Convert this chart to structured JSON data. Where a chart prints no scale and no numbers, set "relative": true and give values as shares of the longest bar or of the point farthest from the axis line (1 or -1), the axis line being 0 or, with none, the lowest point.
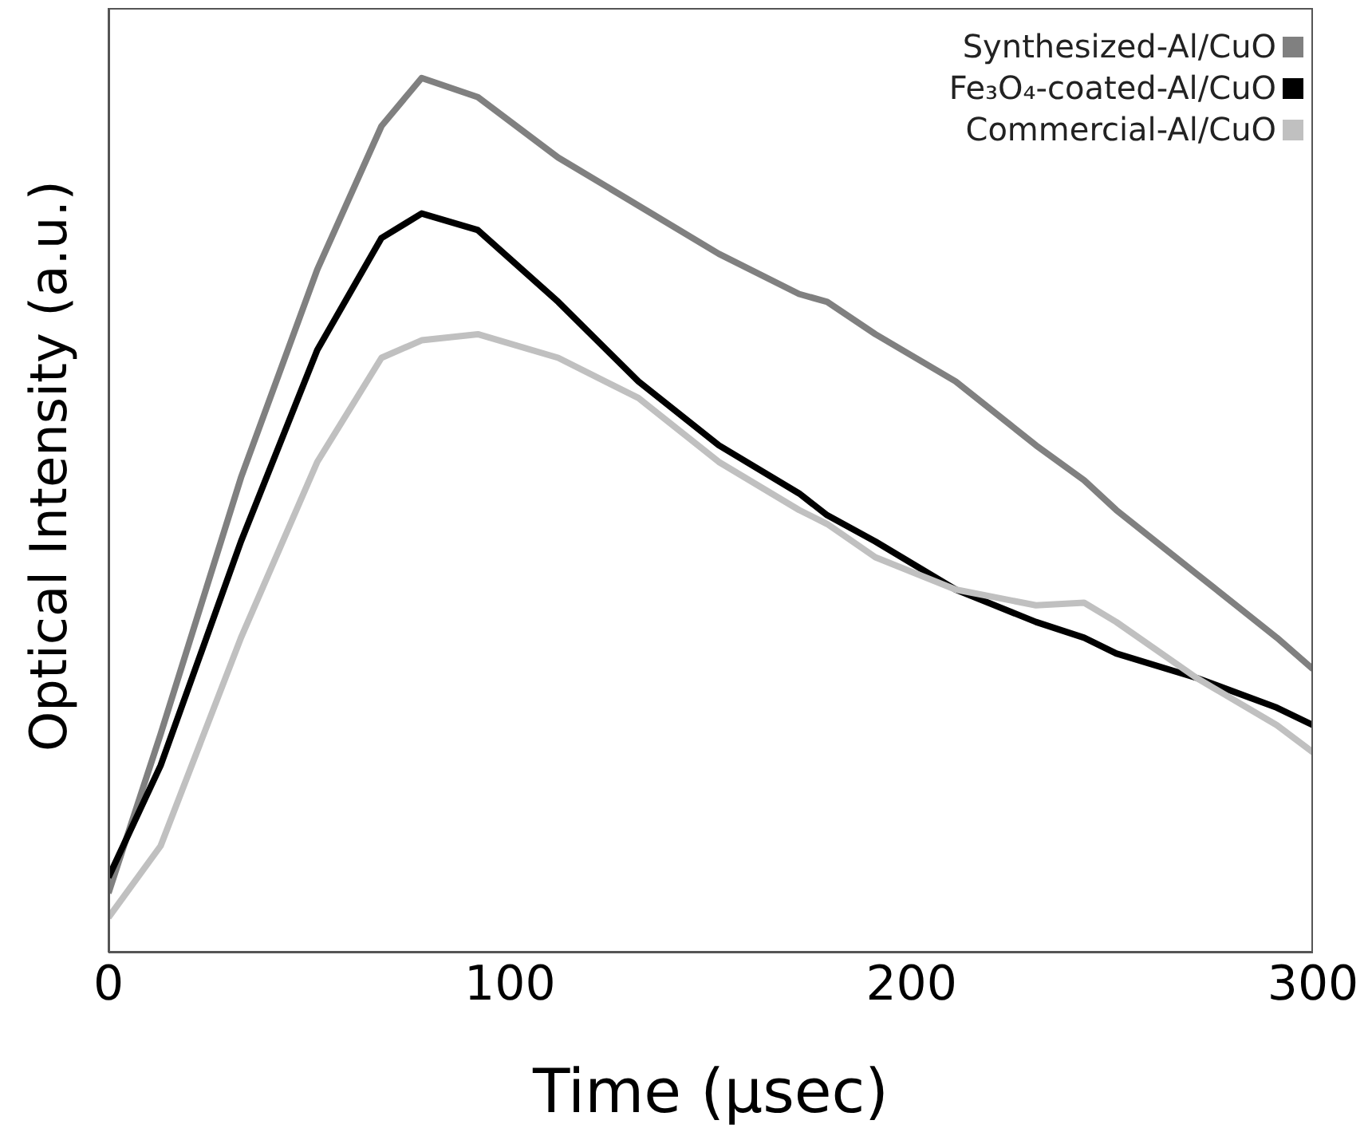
{
  "chart_data": {
    "type": "line",
    "xlabel": "Time (µsec)",
    "ylabel": "Optical Intensity (a.u.)",
    "relative": true,
    "x": [
      0,
      13,
      33,
      52,
      68,
      78,
      92,
      112,
      132,
      152,
      172,
      179,
      191,
      211,
      231,
      243,
      251,
      271,
      291,
      300
    ],
    "series": [
      {
        "name": "Synthesized-Al/CuO",
        "color": "#808080",
        "values": [
          0.068,
          0.25,
          0.543,
          0.781,
          0.945,
          1,
          0.978,
          0.909,
          0.854,
          0.799,
          0.753,
          0.744,
          0.707,
          0.653,
          0.58,
          0.54,
          0.506,
          0.433,
          0.36,
          0.324
        ]
      },
      {
        "name": "Fe₃O₄-coated-Al/CuO",
        "color": "#000000",
        "values": [
          0.086,
          0.214,
          0.47,
          0.689,
          0.817,
          0.845,
          0.826,
          0.744,
          0.653,
          0.58,
          0.525,
          0.5,
          0.47,
          0.415,
          0.378,
          0.36,
          0.342,
          0.314,
          0.28,
          0.26
        ]
      },
      {
        "name": "Commercial-Al/CuO",
        "color": "#c0c0c0",
        "values": [
          0.04,
          0.122,
          0.36,
          0.561,
          0.68,
          0.7,
          0.707,
          0.68,
          0.634,
          0.561,
          0.506,
          0.49,
          0.452,
          0.415,
          0.397,
          0.4,
          0.378,
          0.314,
          0.26,
          0.229
        ]
      }
    ],
    "xlim": [
      0,
      300
    ],
    "xticks": [
      0,
      100,
      200,
      300
    ],
    "grid": false,
    "legend": "top right",
    "marker": "none",
    "line_style": "solid"
  }
}
